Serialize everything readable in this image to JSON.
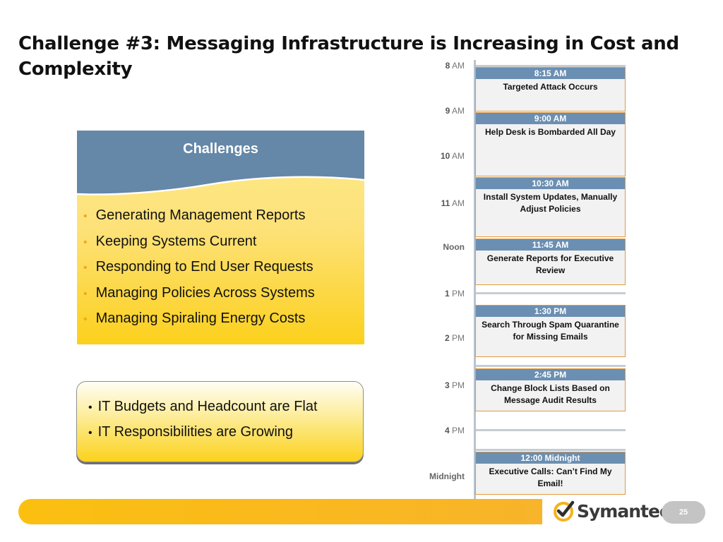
{
  "title": "Challenge #3: Messaging Infrastructure is Increasing in Cost and Complexity",
  "challenges": {
    "heading": "Challenges",
    "items": [
      "Generating Management Reports",
      "Keeping Systems Current",
      "Responding to End User Requests",
      "Managing Policies Across Systems",
      "Managing Spiraling Energy Costs"
    ]
  },
  "callout": {
    "items": [
      "IT Budgets and Headcount are Flat",
      "IT Responsibilities are Growing"
    ]
  },
  "timeline": {
    "hours": [
      {
        "num": "8",
        "suffix": " AM"
      },
      {
        "num": "9",
        "suffix": " AM"
      },
      {
        "num": "10",
        "suffix": " AM"
      },
      {
        "num": "11",
        "suffix": " AM"
      },
      {
        "num": "",
        "suffix": "Noon"
      },
      {
        "num": "1",
        "suffix": " PM"
      },
      {
        "num": "2",
        "suffix": " PM"
      },
      {
        "num": "3",
        "suffix": " PM"
      },
      {
        "num": "4",
        "suffix": " PM"
      },
      {
        "num": "",
        "suffix": "Midnight"
      }
    ],
    "events": [
      {
        "time": "8:15 AM",
        "text": "Targeted Attack Occurs"
      },
      {
        "time": "9:00 AM",
        "text": "Help Desk is Bombarded All Day"
      },
      {
        "time": "10:30 AM",
        "text": "Install System Updates, Manually Adjust Policies"
      },
      {
        "time": "11:45 AM",
        "text": "Generate Reports for Executive Review"
      },
      {
        "time": "1:30 PM",
        "text": "Search Through Spam Quarantine for Missing Emails"
      },
      {
        "time": "2:45 PM",
        "text": "Change Block Lists Based on Message Audit Results"
      },
      {
        "time": "12:00 Midnight",
        "text": "Executive Calls: Can’t Find My Email!"
      }
    ]
  },
  "footer": {
    "logo_text": "Symantec",
    "logo_mark": ".",
    "page_number": "25"
  },
  "colors": {
    "accent_yellow": "#fcd01c",
    "header_blue": "#6b8fb2",
    "event_border": "#e59a3a"
  }
}
